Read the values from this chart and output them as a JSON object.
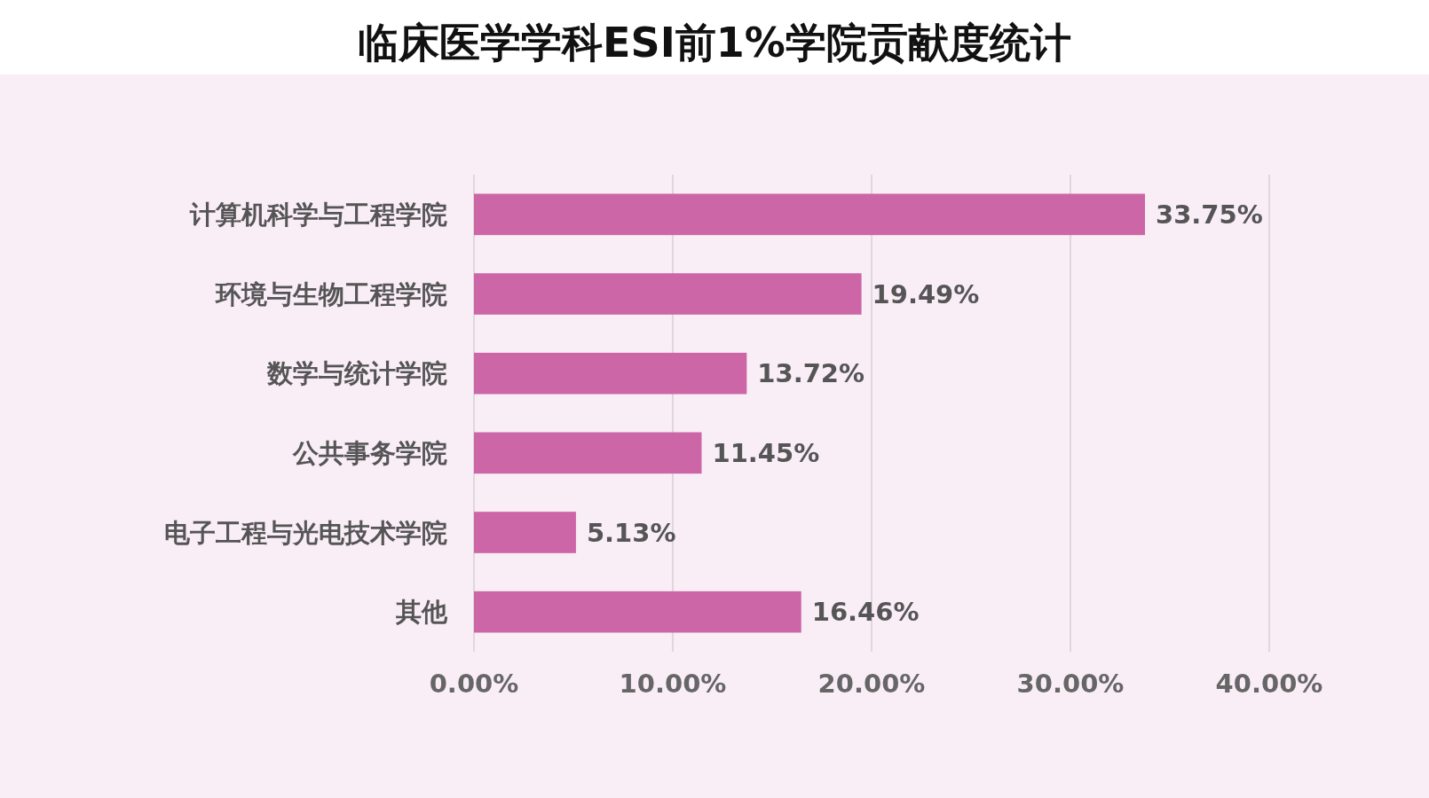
{
  "chart_data": {
    "type": "bar",
    "orientation": "horizontal",
    "title": "临床医学学科ESI前1%学院贡献度统计",
    "categories": [
      "计算机科学与工程学院",
      "环境与生物工程学院",
      "数学与统计学院",
      "公共事务学院",
      "电子工程与光电技术学院",
      "其他"
    ],
    "values": [
      33.75,
      19.49,
      13.72,
      11.45,
      5.13,
      16.46
    ],
    "value_labels": [
      "33.75%",
      "19.49%",
      "13.72%",
      "11.45%",
      "5.13%",
      "16.46%"
    ],
    "color": "#cc66a6",
    "xlim": [
      0,
      40
    ],
    "xticks": [
      {
        "value": 0,
        "label": "0.00%"
      },
      {
        "value": 10,
        "label": "10.00%"
      },
      {
        "value": 20,
        "label": "20.00%"
      },
      {
        "value": 30,
        "label": "30.00%"
      },
      {
        "value": 40,
        "label": "40.00%"
      }
    ],
    "grid": "x"
  }
}
